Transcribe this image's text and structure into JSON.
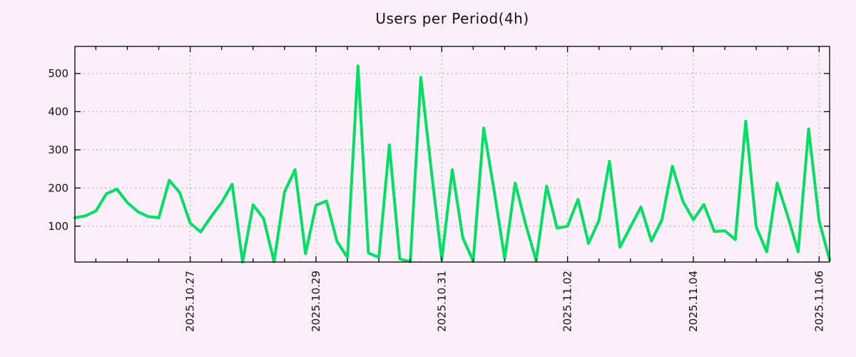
{
  "chart_data": {
    "type": "line",
    "title": "Users per Period(4h)",
    "xlabel": "",
    "ylabel": "",
    "x_start": "2025-10-25 04:00",
    "interval_hours": 4,
    "values": [
      122,
      127,
      140,
      185,
      197,
      162,
      138,
      125,
      122,
      220,
      188,
      108,
      85,
      125,
      162,
      210,
      6,
      156,
      120,
      7,
      190,
      248,
      28,
      155,
      166,
      60,
      18,
      520,
      30,
      18,
      313,
      14,
      7,
      490,
      247,
      12,
      248,
      70,
      8,
      357,
      192,
      15,
      213,
      105,
      10,
      205,
      95,
      100,
      170,
      55,
      115,
      270,
      45,
      98,
      150,
      61,
      117,
      257,
      165,
      117,
      157,
      86,
      88,
      65,
      375,
      98,
      33,
      213,
      127,
      33,
      355,
      114,
      12
    ],
    "y_ticks": [
      100,
      200,
      300,
      400,
      500
    ],
    "ylim": [
      6,
      571
    ],
    "x_ticks": [
      {
        "label": "2025.10.27",
        "index": 11
      },
      {
        "label": "2025.10.29",
        "index": 23
      },
      {
        "label": "2025.10.31",
        "index": 35
      },
      {
        "label": "2025.11.02",
        "index": 47
      },
      {
        "label": "2025.11.04",
        "index": 59
      },
      {
        "label": "2025.11.06",
        "index": 71
      }
    ],
    "minor_tick_every_points": 3,
    "minor_tick_offset": 2,
    "grid": "dotted",
    "legend_position": "none"
  },
  "colors": {
    "line": "#00e163",
    "background": "#fdf0fa",
    "grid": "#a6a6a6",
    "frame": "#000000",
    "text": "#111111"
  }
}
